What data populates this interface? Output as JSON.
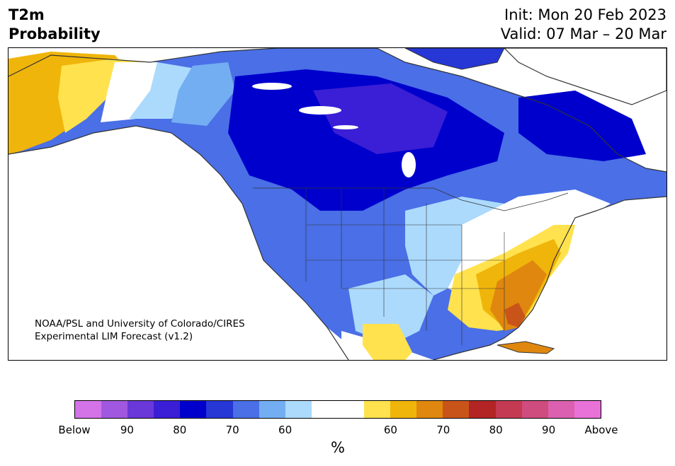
{
  "header": {
    "title_line1": "T2m",
    "title_line2": "Probability",
    "init_text": "Init: Mon 20 Feb 2023",
    "valid_text": "Valid: 07 Mar – 20 Mar"
  },
  "map": {
    "credit_line1": "NOAA/PSL and University of Colorado/CIRES",
    "credit_line2": "Experimental LIM Forecast (v1.2)",
    "colors": {
      "below_90": "#6a37d9",
      "below_80": "#3a1fd6",
      "below_70b": "#0000cc",
      "below_70": "#2637d6",
      "below_65": "#4a6fe6",
      "below_60": "#74aef2",
      "below_55": "#acdafc",
      "neutral": "#ffffff",
      "above_55": "#ffe24d",
      "above_60": "#f0b50a",
      "above_65": "#df870e",
      "above_70": "#c9541a",
      "coast": "#333333"
    }
  },
  "colorbar": {
    "colors": [
      "#d472e8",
      "#a058e0",
      "#6a37d9",
      "#3a1fd6",
      "#0000cc",
      "#2637d6",
      "#4a6fe6",
      "#74aef2",
      "#acdafc",
      "#ffffff",
      "#ffffff",
      "#ffe24d",
      "#f0b50a",
      "#df870e",
      "#c9541a",
      "#b32424",
      "#c43a52",
      "#cf4c7e",
      "#dc60b0",
      "#e872d8"
    ],
    "labels": [
      "Below",
      "90",
      "80",
      "70",
      "60",
      "60",
      "70",
      "80",
      "90",
      "Above"
    ],
    "unit": "%"
  }
}
